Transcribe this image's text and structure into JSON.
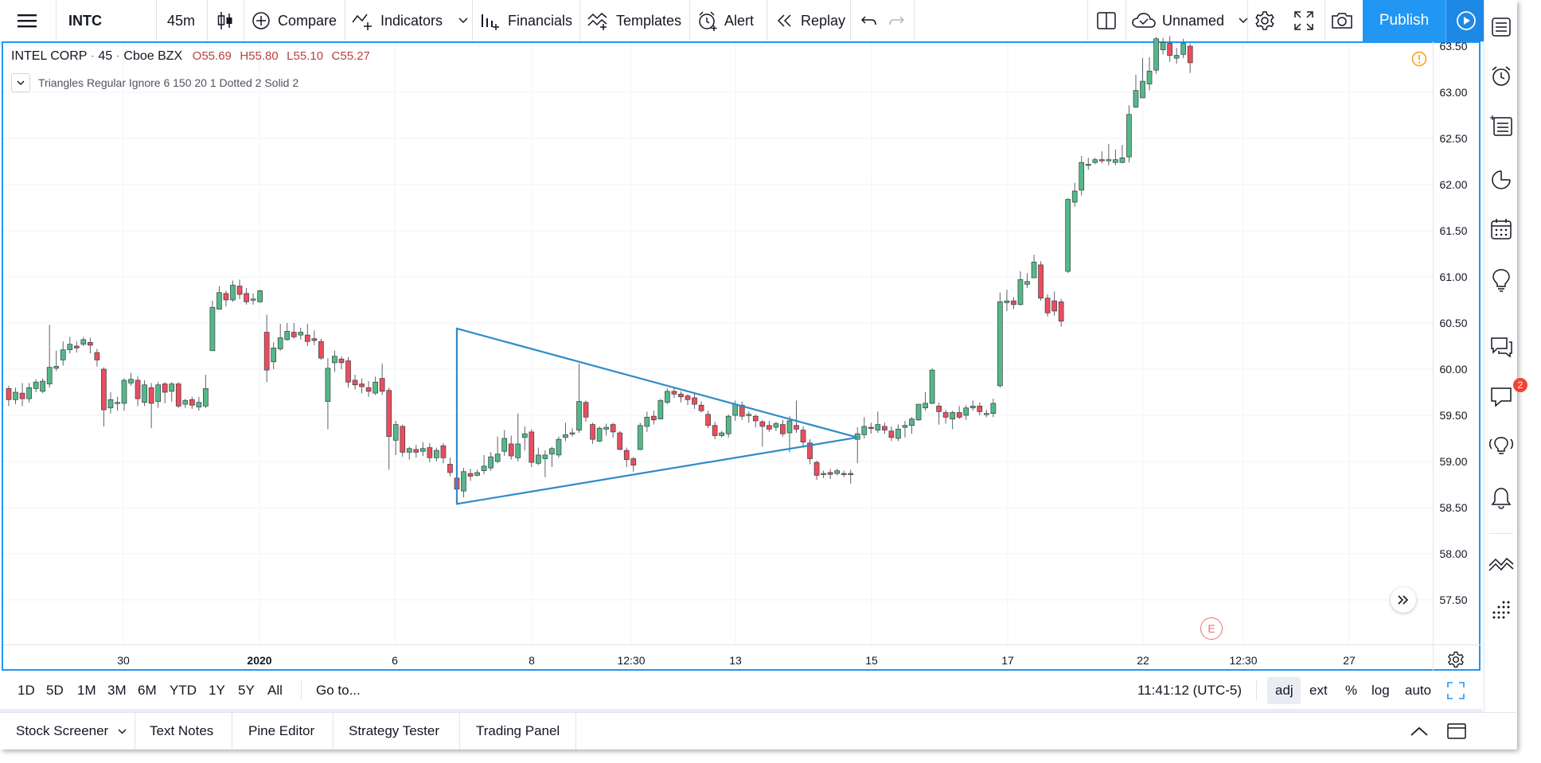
{
  "toolbar": {
    "symbol": "INTC",
    "interval": "45m",
    "compare_label": "Compare",
    "indicators_label": "Indicators",
    "financials_label": "Financials",
    "templates_label": "Templates",
    "alert_label": "Alert",
    "replay_label": "Replay",
    "layout_name": "Unnamed",
    "publish_label": "Publish"
  },
  "legend": {
    "symbol_name": "INTEL CORP",
    "interval": "45",
    "exchange": "Cboe BZX",
    "open": "O55.69",
    "high": "H55.80",
    "low": "L55.10",
    "close": "C55.27",
    "indicator": "Triangles Regular Ignore 6 150 20 1 Dotted 2 Solid 2"
  },
  "chart_data": {
    "type": "candlestick",
    "price_ticks": [
      "63.50",
      "63.00",
      "62.50",
      "62.00",
      "61.50",
      "61.00",
      "60.50",
      "60.00",
      "59.50",
      "59.00",
      "58.50",
      "58.00",
      "57.50"
    ],
    "time_ticks": [
      "30",
      "2020",
      "6",
      "8",
      "12:30",
      "13",
      "15",
      "17",
      "22",
      "12:30",
      "27"
    ],
    "ylim": [
      57.1,
      63.5
    ],
    "colors": {
      "up": "#53b987",
      "down": "#eb4d5c",
      "triangle": "#2e8bc9"
    },
    "candles": [
      [
        59.79,
        59.67,
        59.82,
        59.6
      ],
      [
        59.67,
        59.75,
        59.8,
        59.62
      ],
      [
        59.74,
        59.68,
        59.85,
        59.6
      ],
      [
        59.68,
        59.8,
        59.85,
        59.64
      ],
      [
        59.79,
        59.86,
        59.89,
        59.75
      ],
      [
        59.76,
        59.87,
        59.9,
        59.74
      ],
      [
        59.84,
        60.02,
        60.48,
        59.8
      ],
      [
        60.01,
        60.03,
        60.2,
        59.98
      ],
      [
        60.1,
        60.21,
        60.3,
        60.04
      ],
      [
        60.21,
        60.27,
        60.35,
        60.17
      ],
      [
        60.25,
        60.23,
        60.3,
        60.18
      ],
      [
        60.27,
        60.32,
        60.35,
        60.25
      ],
      [
        60.29,
        60.26,
        60.34,
        60.17
      ],
      [
        60.18,
        60.1,
        60.22,
        60.03
      ],
      [
        60.0,
        59.56,
        60.02,
        59.38
      ],
      [
        59.58,
        59.67,
        59.75,
        59.52
      ],
      [
        59.63,
        59.64,
        59.7,
        59.55
      ],
      [
        59.63,
        59.88,
        59.9,
        59.55
      ],
      [
        59.85,
        59.89,
        59.96,
        59.82
      ],
      [
        59.88,
        59.68,
        59.92,
        59.6
      ],
      [
        59.64,
        59.83,
        59.88,
        59.6
      ],
      [
        59.8,
        59.63,
        59.85,
        59.36
      ],
      [
        59.65,
        59.83,
        59.86,
        59.58
      ],
      [
        59.84,
        59.75,
        59.86,
        59.63
      ],
      [
        59.76,
        59.84,
        59.86,
        59.65
      ],
      [
        59.84,
        59.6,
        59.86,
        59.58
      ],
      [
        59.62,
        59.66,
        59.68,
        59.58
      ],
      [
        59.67,
        59.61,
        59.7,
        59.57
      ],
      [
        59.59,
        59.64,
        59.7,
        59.55
      ],
      [
        59.6,
        59.79,
        59.94,
        59.58
      ],
      [
        60.2,
        60.67,
        60.74,
        60.2
      ],
      [
        60.65,
        60.83,
        60.9,
        60.66
      ],
      [
        60.82,
        60.75,
        60.85,
        60.68
      ],
      [
        60.75,
        60.91,
        60.96,
        60.73
      ],
      [
        60.9,
        60.81,
        60.97,
        60.76
      ],
      [
        60.82,
        60.73,
        60.88,
        60.7
      ],
      [
        60.75,
        60.76,
        60.82,
        60.7
      ],
      [
        60.73,
        60.85,
        60.86,
        60.72
      ],
      [
        60.4,
        59.99,
        60.59,
        59.86
      ],
      [
        60.08,
        60.23,
        60.29,
        60.0
      ],
      [
        60.22,
        60.34,
        60.49,
        60.2
      ],
      [
        60.32,
        60.41,
        60.5,
        60.31
      ],
      [
        60.4,
        60.35,
        60.5,
        60.33
      ],
      [
        60.37,
        60.4,
        60.45,
        60.32
      ],
      [
        60.37,
        60.3,
        60.49,
        60.25
      ],
      [
        60.33,
        60.31,
        60.42,
        60.26
      ],
      [
        60.3,
        60.12,
        60.33,
        60.1
      ],
      [
        59.65,
        60.01,
        60.12,
        59.35
      ],
      [
        60.07,
        60.14,
        60.2,
        59.97
      ],
      [
        60.11,
        60.07,
        60.14,
        60.0
      ],
      [
        60.09,
        59.86,
        60.13,
        59.8
      ],
      [
        59.88,
        59.83,
        59.94,
        59.78
      ],
      [
        59.84,
        59.81,
        59.9,
        59.74
      ],
      [
        59.8,
        59.76,
        59.87,
        59.7
      ],
      [
        59.74,
        59.86,
        59.92,
        59.72
      ],
      [
        59.9,
        59.76,
        60.06,
        59.72
      ],
      [
        59.77,
        59.27,
        59.8,
        58.91
      ],
      [
        59.23,
        59.4,
        59.44,
        59.07
      ],
      [
        59.38,
        59.1,
        59.4,
        59.05
      ],
      [
        59.1,
        59.14,
        59.16,
        59.02
      ],
      [
        59.13,
        59.1,
        59.18,
        59.04
      ],
      [
        59.11,
        59.14,
        59.21,
        59.06
      ],
      [
        59.15,
        59.04,
        59.2,
        58.99
      ],
      [
        59.04,
        59.12,
        59.15,
        59.0
      ],
      [
        59.17,
        59.04,
        59.2,
        58.98
      ],
      [
        58.97,
        58.88,
        59.04,
        58.84
      ],
      [
        58.82,
        58.7,
        58.92,
        58.66
      ],
      [
        58.68,
        58.89,
        58.93,
        58.61
      ],
      [
        58.87,
        58.84,
        58.92,
        58.79
      ],
      [
        58.85,
        58.88,
        58.91,
        58.84
      ],
      [
        58.9,
        58.95,
        59.07,
        58.86
      ],
      [
        58.93,
        59.05,
        59.1,
        58.9
      ],
      [
        59.0,
        59.08,
        59.27,
        58.98
      ],
      [
        59.11,
        59.25,
        59.34,
        59.06
      ],
      [
        59.19,
        59.06,
        59.28,
        59.02
      ],
      [
        59.04,
        59.19,
        59.52,
        59.0
      ],
      [
        59.26,
        59.3,
        59.38,
        59.12
      ],
      [
        59.32,
        58.99,
        59.35,
        58.94
      ],
      [
        58.98,
        59.07,
        59.15,
        58.96
      ],
      [
        59.03,
        59.07,
        59.12,
        58.83
      ],
      [
        59.08,
        59.14,
        59.16,
        58.94
      ],
      [
        59.07,
        59.24,
        59.27,
        59.04
      ],
      [
        59.26,
        59.29,
        59.42,
        59.22
      ],
      [
        59.31,
        59.31,
        59.36,
        59.27
      ],
      [
        59.34,
        59.65,
        60.06,
        59.31
      ],
      [
        59.64,
        59.48,
        59.66,
        59.43
      ],
      [
        59.4,
        59.24,
        59.42,
        59.19
      ],
      [
        59.22,
        59.36,
        59.38,
        59.21
      ],
      [
        59.35,
        59.37,
        59.41,
        59.28
      ],
      [
        59.4,
        59.32,
        59.42,
        59.26
      ],
      [
        59.31,
        59.13,
        59.33,
        59.12
      ],
      [
        59.12,
        59.02,
        59.15,
        58.94
      ],
      [
        59.03,
        58.96,
        59.05,
        58.89
      ],
      [
        59.13,
        59.39,
        59.42,
        59.12
      ],
      [
        59.38,
        59.48,
        59.54,
        59.32
      ],
      [
        59.49,
        59.45,
        59.55,
        59.4
      ],
      [
        59.46,
        59.66,
        59.68,
        59.5
      ],
      [
        59.64,
        59.76,
        59.79,
        59.62
      ],
      [
        59.76,
        59.73,
        59.8,
        59.69
      ],
      [
        59.73,
        59.7,
        59.76,
        59.64
      ],
      [
        59.71,
        59.67,
        59.73,
        59.61
      ],
      [
        59.69,
        59.62,
        59.74,
        59.57
      ],
      [
        59.61,
        59.55,
        59.65,
        59.53
      ],
      [
        59.51,
        59.39,
        59.55,
        59.36
      ],
      [
        59.39,
        59.28,
        59.43,
        59.24
      ],
      [
        59.28,
        59.31,
        59.33,
        59.26
      ],
      [
        59.3,
        59.49,
        59.51,
        59.26
      ],
      [
        59.5,
        59.62,
        59.66,
        59.44
      ],
      [
        59.61,
        59.49,
        59.65,
        59.45
      ],
      [
        59.5,
        59.51,
        59.54,
        59.42
      ],
      [
        59.49,
        59.44,
        59.51,
        59.37
      ],
      [
        59.43,
        59.38,
        59.45,
        59.16
      ],
      [
        59.39,
        59.35,
        59.44,
        59.32
      ],
      [
        59.37,
        59.41,
        59.43,
        59.33
      ],
      [
        59.4,
        59.3,
        59.45,
        59.27
      ],
      [
        59.31,
        59.44,
        59.49,
        59.1
      ],
      [
        59.39,
        59.35,
        59.66,
        59.31
      ],
      [
        59.34,
        59.21,
        59.38,
        59.15
      ],
      [
        59.2,
        59.03,
        59.24,
        58.97
      ],
      [
        58.99,
        58.85,
        59.01,
        58.8
      ],
      [
        58.86,
        58.87,
        58.9,
        58.82
      ],
      [
        58.88,
        58.86,
        58.92,
        58.81
      ],
      [
        58.87,
        58.9,
        58.92,
        58.85
      ],
      [
        58.87,
        58.86,
        58.9,
        58.83
      ],
      [
        58.87,
        58.86,
        58.91,
        58.76
      ],
      [
        59.24,
        59.3,
        59.37,
        58.98
      ],
      [
        59.29,
        59.38,
        59.48,
        59.25
      ],
      [
        59.37,
        59.36,
        59.42,
        59.3
      ],
      [
        59.34,
        59.4,
        59.54,
        59.31
      ],
      [
        59.38,
        59.34,
        59.42,
        59.3
      ],
      [
        59.33,
        59.26,
        59.38,
        59.22
      ],
      [
        59.25,
        59.35,
        59.4,
        59.22
      ],
      [
        59.37,
        59.39,
        59.44,
        59.26
      ],
      [
        59.39,
        59.46,
        59.48,
        59.3
      ],
      [
        59.45,
        59.62,
        59.62,
        59.44
      ],
      [
        59.58,
        59.63,
        59.75,
        59.55
      ],
      [
        59.63,
        59.99,
        60.01,
        59.62
      ],
      [
        59.6,
        59.54,
        59.64,
        59.4
      ],
      [
        59.53,
        59.48,
        59.56,
        59.41
      ],
      [
        59.46,
        59.53,
        59.55,
        59.35
      ],
      [
        59.53,
        59.48,
        59.6,
        59.46
      ],
      [
        59.5,
        59.58,
        59.61,
        59.45
      ],
      [
        59.58,
        59.6,
        59.66,
        59.55
      ],
      [
        59.6,
        59.54,
        59.64,
        59.5
      ],
      [
        59.51,
        59.52,
        59.56,
        59.48
      ],
      [
        59.52,
        59.63,
        59.68,
        59.48
      ],
      [
        59.82,
        60.73,
        60.83,
        59.8
      ],
      [
        60.72,
        60.74,
        60.86,
        60.63
      ],
      [
        60.74,
        60.7,
        60.78,
        60.65
      ],
      [
        60.7,
        60.97,
        61.06,
        60.69
      ],
      [
        60.92,
        60.95,
        61.04,
        60.88
      ],
      [
        60.99,
        61.16,
        61.24,
        60.99
      ],
      [
        61.13,
        60.77,
        61.17,
        60.74
      ],
      [
        60.77,
        60.61,
        60.81,
        60.57
      ],
      [
        60.74,
        60.63,
        60.84,
        60.58
      ],
      [
        60.73,
        60.52,
        60.76,
        60.46
      ],
      [
        61.06,
        61.84,
        61.85,
        61.04
      ],
      [
        61.81,
        61.93,
        62.02,
        61.76
      ],
      [
        61.94,
        62.24,
        62.31,
        61.88
      ],
      [
        62.21,
        62.22,
        62.29,
        62.16
      ],
      [
        62.24,
        62.27,
        62.29,
        62.22
      ],
      [
        62.27,
        62.26,
        62.36,
        62.23
      ],
      [
        62.26,
        62.27,
        62.44,
        62.21
      ],
      [
        62.24,
        62.27,
        62.38,
        62.21
      ],
      [
        62.24,
        62.29,
        62.43,
        62.23
      ],
      [
        62.3,
        62.76,
        62.86,
        62.24
      ],
      [
        62.84,
        63.02,
        63.19,
        62.83
      ],
      [
        62.94,
        63.12,
        63.37,
        62.95
      ],
      [
        63.09,
        63.23,
        63.38,
        63.02
      ],
      [
        63.24,
        63.58,
        63.6,
        63.2
      ],
      [
        63.46,
        63.54,
        63.59,
        63.41
      ],
      [
        63.53,
        63.4,
        63.61,
        63.33
      ],
      [
        63.37,
        63.4,
        63.48,
        63.31
      ],
      [
        63.41,
        63.53,
        63.58,
        63.37
      ],
      [
        63.5,
        63.32,
        63.53,
        63.21
      ]
    ],
    "triangle": {
      "apex_top": {
        "bar": 66,
        "price": 60.44
      },
      "base_bottom": {
        "bar": 66,
        "price": 58.54
      },
      "tip": {
        "bar": 125,
        "price": 59.26
      }
    }
  },
  "earnings_marker": "E",
  "rangebar": {
    "ranges": [
      "1D",
      "5D",
      "1M",
      "3M",
      "6M",
      "YTD",
      "1Y",
      "5Y",
      "All"
    ],
    "goto_label": "Go to...",
    "clock": "11:41:12 (UTC-5)",
    "options": [
      "adj",
      "ext",
      "%",
      "log",
      "auto"
    ]
  },
  "bottompanel": {
    "tabs": [
      "Stock Screener",
      "Text Notes",
      "Pine Editor",
      "Strategy Tester",
      "Trading Panel"
    ]
  },
  "sidebar": {
    "notifications_count": "2"
  }
}
